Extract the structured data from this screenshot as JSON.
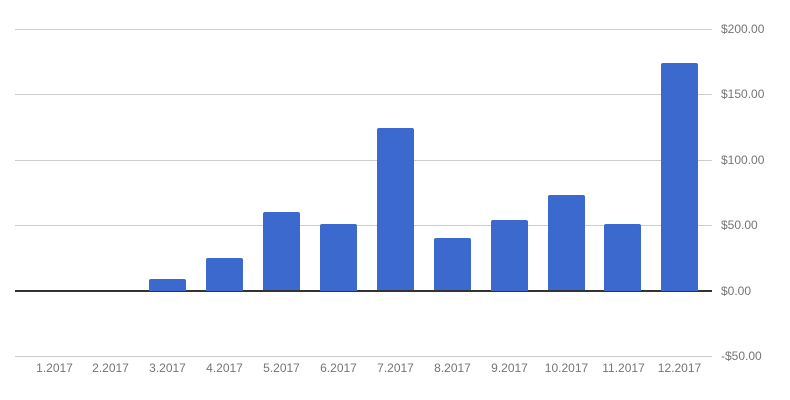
{
  "chart_data": {
    "type": "bar",
    "title": "",
    "categories": [
      "1.2017",
      "2.2017",
      "3.2017",
      "4.2017",
      "5.2017",
      "6.2017",
      "7.2017",
      "8.2017",
      "9.2017",
      "10.2017",
      "11.2017",
      "12.2017"
    ],
    "values": [
      0,
      0,
      9,
      25,
      60,
      51,
      124,
      40,
      54,
      73,
      51,
      174
    ],
    "xlabel": "",
    "ylabel": "",
    "y_axis": {
      "side": "right",
      "tick_labels": [
        "$200.00",
        "$150.00",
        "$100.00",
        "$50.00",
        "$0.00",
        "-$50.00"
      ],
      "tick_values": [
        200,
        150,
        100,
        50,
        0,
        -50
      ],
      "min": -50,
      "max": 200,
      "format": "currency-usd"
    },
    "grid": true,
    "legend": "none",
    "colors": {
      "bar": "#3B69CD",
      "gridline": "#CCCCCC",
      "zero_axis": "#333333",
      "tick_text": "#757575",
      "background": "#FFFFFF"
    }
  }
}
